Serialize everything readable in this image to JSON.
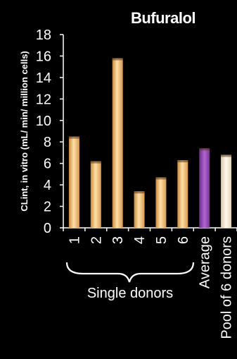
{
  "chart_data": {
    "type": "bar",
    "title": "Bufuralol",
    "ylabel": "CLint, in vitro  (mL/ min/ million  cells)",
    "ylim": [
      0,
      18
    ],
    "yticks": [
      "0",
      "2",
      "4",
      "6",
      "8",
      "10",
      "12",
      "14",
      "16",
      "18"
    ],
    "categories": [
      "1",
      "2",
      "3",
      "4",
      "5",
      "6",
      "Average",
      "Pool of 6 donors"
    ],
    "values": [
      8.5,
      6.2,
      15.8,
      3.4,
      4.7,
      6.3,
      7.4,
      6.8
    ],
    "group_label": "Single donors",
    "grid": false,
    "colors": {
      "donor_bar": "#f5c27a",
      "average_bar": "#8a3ba8",
      "pool_bar": "#f3e6cf",
      "background": "#000000",
      "axis": "#ffffff"
    }
  }
}
